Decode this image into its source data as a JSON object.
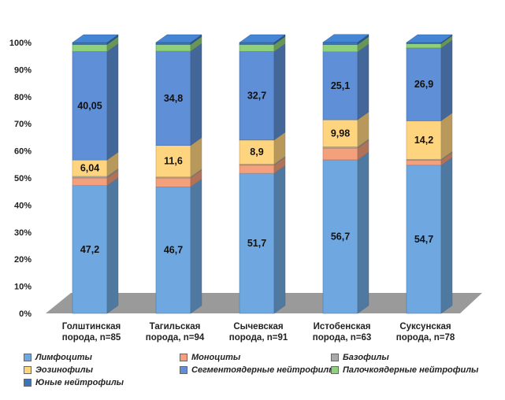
{
  "chart_data": {
    "type": "bar",
    "stacked": true,
    "three_d": true,
    "ylim": [
      0,
      100
    ],
    "yticks": [
      "0%",
      "10%",
      "20%",
      "30%",
      "40%",
      "50%",
      "60%",
      "70%",
      "80%",
      "90%",
      "100%"
    ],
    "categories": [
      [
        "Голштинская",
        "порода,  n=85"
      ],
      [
        "Тагильская",
        "порода, n=94"
      ],
      [
        "Сычевская",
        "порода, n=91"
      ],
      [
        "Истобенская",
        "порода, n=63"
      ],
      [
        "Суксунская",
        "порода, n=78"
      ]
    ],
    "series": [
      {
        "name": "Лимфоциты",
        "color": "#6fa8e0",
        "values": [
          47.2,
          46.7,
          51.7,
          56.7,
          54.7
        ],
        "labels": [
          "47,2",
          "46,7",
          "51,7",
          "56,7",
          "54,7"
        ]
      },
      {
        "name": "Моноциты",
        "color": "#f4a07c",
        "values": [
          2.8,
          3.3,
          3.0,
          4.3,
          1.8
        ],
        "labels": [
          "",
          "",
          "",
          "",
          ""
        ]
      },
      {
        "name": "Базофилы",
        "color": "#a9a9a9",
        "values": [
          0.6,
          0.4,
          0.4,
          0.5,
          0.4
        ],
        "labels": [
          "",
          "",
          "",
          "",
          ""
        ]
      },
      {
        "name": "Эозинофилы",
        "color": "#ffd47f",
        "values": [
          6.04,
          11.6,
          8.9,
          9.98,
          14.2
        ],
        "labels": [
          "6,04",
          "11,6",
          "8,9",
          "9,98",
          "14,2"
        ]
      },
      {
        "name": "Сегментоядерные нейтрофилы",
        "color": "#5f8fd6",
        "values": [
          40.05,
          34.8,
          32.7,
          25.1,
          26.9
        ],
        "labels": [
          "40,05",
          "34,8",
          "32,7",
          "25,1",
          "26,9"
        ]
      },
      {
        "name": "Палочкоядерные нейтрофилы",
        "color": "#8fd07a",
        "values": [
          2.6,
          2.5,
          2.6,
          2.7,
          1.6
        ],
        "labels": [
          "",
          "",
          "",
          "",
          ""
        ]
      },
      {
        "name": "Юные нейтрофилы",
        "color": "#3b74b8",
        "values": [
          0.7,
          0.7,
          0.7,
          0.8,
          0.4
        ],
        "labels": [
          "",
          "",
          "",
          "",
          ""
        ]
      }
    ],
    "legend_position": "bottom",
    "grid": false
  }
}
